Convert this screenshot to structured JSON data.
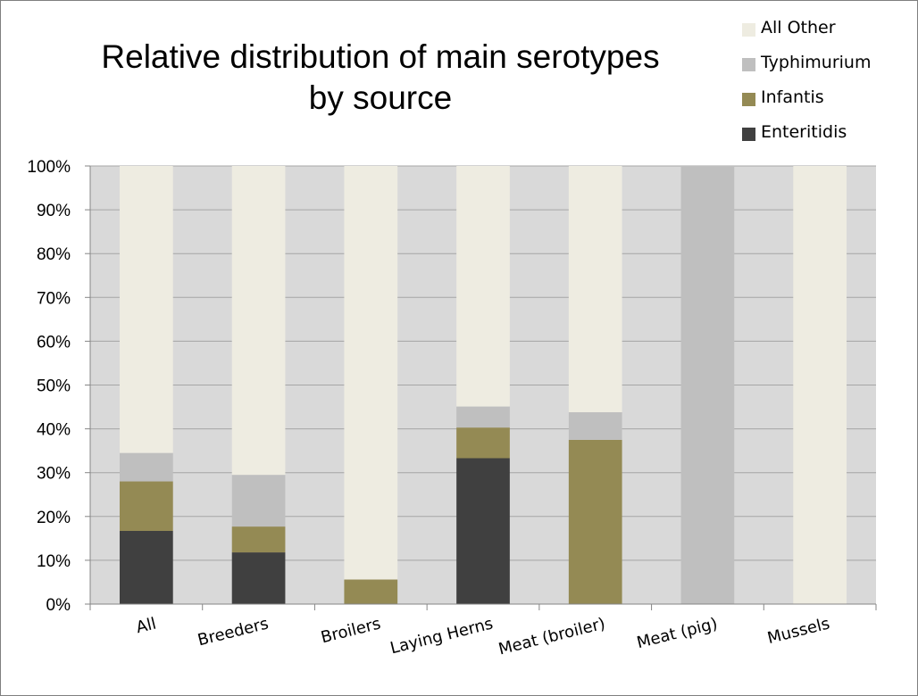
{
  "chart_data": {
    "type": "bar",
    "stacked": true,
    "percent": true,
    "title_lines": [
      "Relative distribution of main serotypes",
      "by source"
    ],
    "categories": [
      "All",
      "Breeders",
      "Broilers",
      "Laying Herns",
      "Meat (broiler)",
      "Meat (pig)",
      "Mussels"
    ],
    "series": [
      {
        "name": "Enteritidis",
        "color": "#404040",
        "values": [
          16.7,
          11.8,
          0,
          33.3,
          0,
          0,
          0
        ]
      },
      {
        "name": "Infantis",
        "color": "#948a54",
        "values": [
          11.3,
          5.9,
          5.6,
          7.0,
          37.5,
          0,
          0
        ]
      },
      {
        "name": "Typhimurium",
        "color": "#bfbfbf",
        "values": [
          6.5,
          11.8,
          0,
          4.8,
          6.3,
          100,
          0
        ]
      },
      {
        "name": "All Other",
        "color": "#eeece1",
        "values": [
          65.5,
          70.5,
          94.4,
          54.9,
          56.2,
          0,
          100
        ]
      }
    ],
    "y_ticks": [
      "0%",
      "10%",
      "20%",
      "30%",
      "40%",
      "50%",
      "60%",
      "70%",
      "80%",
      "90%",
      "100%"
    ],
    "ylim": [
      0,
      100
    ],
    "plot_background": "#d9d9d9",
    "gridline_color": "#a6a6a6",
    "legend_position": "top-right",
    "legend_order": [
      3,
      2,
      1,
      0
    ]
  }
}
